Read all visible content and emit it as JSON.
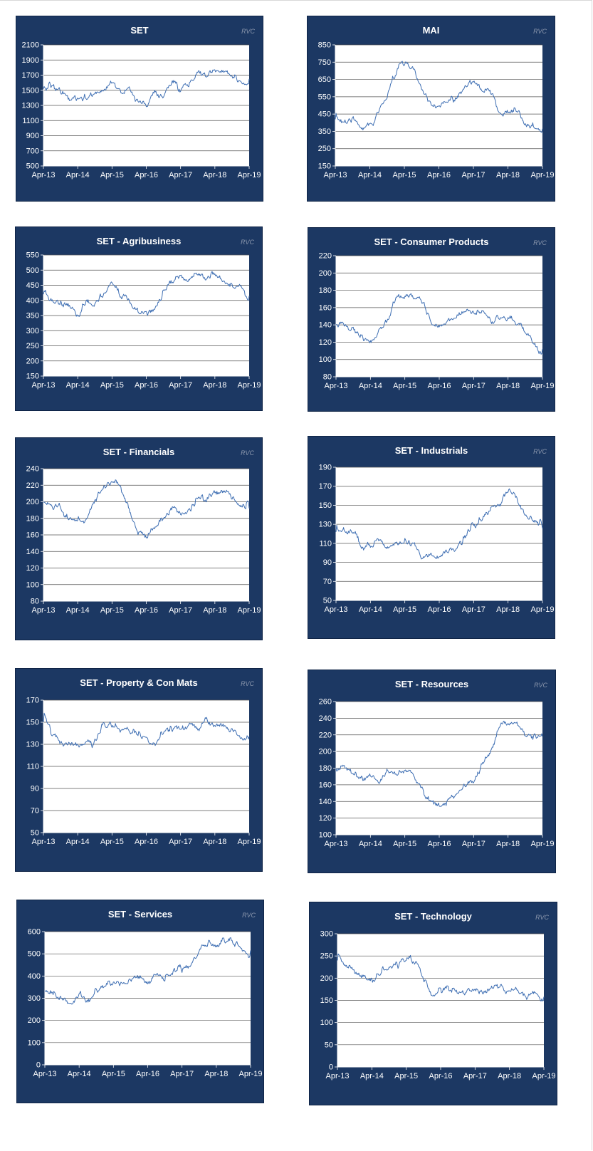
{
  "watermark": "RVC",
  "colors": {
    "panel_bg": "#1c3863",
    "plot_bg": "#ffffff",
    "line": "#3f6fb3",
    "grid": "#555555"
  },
  "x_axis_labels": [
    "Apr-13",
    "Apr-14",
    "Apr-15",
    "Apr-16",
    "Apr-17",
    "Apr-18",
    "Apr-19"
  ],
  "chart_data": [
    {
      "type": "line",
      "title": "SET",
      "ylim": [
        500,
        2100
      ],
      "yticks": [
        500,
        700,
        900,
        1100,
        1300,
        1500,
        1700,
        1900,
        2100
      ],
      "x": [
        "Apr-13",
        "Apr-14",
        "Apr-15",
        "Apr-16",
        "Apr-17",
        "Apr-18",
        "Apr-19"
      ],
      "grid": true,
      "series": [
        {
          "values": [
            1520,
            1340,
            1560,
            1370,
            1580,
            1760,
            1650
          ]
        }
      ]
    },
    {
      "type": "line",
      "title": "MAI",
      "ylim": [
        150,
        850
      ],
      "yticks": [
        150,
        250,
        350,
        450,
        550,
        650,
        750,
        850
      ],
      "x": [
        "Apr-13",
        "Apr-14",
        "Apr-15",
        "Apr-16",
        "Apr-17",
        "Apr-18",
        "Apr-19"
      ],
      "grid": true,
      "series": [
        {
          "values": [
            420,
            390,
            740,
            510,
            630,
            470,
            365
          ]
        }
      ]
    },
    {
      "type": "line",
      "title": "SET - Agribusiness",
      "ylim": [
        150,
        550
      ],
      "yticks": [
        150,
        200,
        250,
        300,
        350,
        400,
        450,
        500,
        550
      ],
      "x": [
        "Apr-13",
        "Apr-14",
        "Apr-15",
        "Apr-16",
        "Apr-17",
        "Apr-18",
        "Apr-19"
      ],
      "grid": true,
      "series": [
        {
          "values": [
            420,
            370,
            440,
            360,
            480,
            490,
            415
          ]
        }
      ]
    },
    {
      "type": "line",
      "title": "SET - Consumer Products",
      "ylim": [
        80,
        220
      ],
      "yticks": [
        80,
        100,
        120,
        140,
        160,
        180,
        200,
        220
      ],
      "x": [
        "Apr-13",
        "Apr-14",
        "Apr-15",
        "Apr-16",
        "Apr-17",
        "Apr-18",
        "Apr-19"
      ],
      "grid": true,
      "series": [
        {
          "values": [
            140,
            125,
            180,
            144,
            153,
            145,
            112
          ]
        }
      ]
    },
    {
      "type": "line",
      "title": "SET - Financials",
      "ylim": [
        80,
        240
      ],
      "yticks": [
        80,
        100,
        120,
        140,
        160,
        180,
        200,
        220,
        240
      ],
      "x": [
        "Apr-13",
        "Apr-14",
        "Apr-15",
        "Apr-16",
        "Apr-17",
        "Apr-18",
        "Apr-19"
      ],
      "grid": true,
      "series": [
        {
          "values": [
            200,
            175,
            220,
            160,
            192,
            210,
            192
          ]
        }
      ]
    },
    {
      "type": "line",
      "title": "SET - Industrials",
      "ylim": [
        50,
        190
      ],
      "yticks": [
        50,
        70,
        90,
        110,
        130,
        150,
        170,
        190
      ],
      "x": [
        "Apr-13",
        "Apr-14",
        "Apr-15",
        "Apr-16",
        "Apr-17",
        "Apr-18",
        "Apr-19"
      ],
      "grid": true,
      "series": [
        {
          "values": [
            122,
            112,
            106,
            92,
            126,
            162,
            126
          ]
        }
      ]
    },
    {
      "type": "line",
      "title": "SET - Property & Con Mats",
      "ylim": [
        50,
        170
      ],
      "yticks": [
        50,
        70,
        90,
        110,
        130,
        150,
        170
      ],
      "x": [
        "Apr-13",
        "Apr-14",
        "Apr-15",
        "Apr-16",
        "Apr-17",
        "Apr-18",
        "Apr-19"
      ],
      "grid": true,
      "series": [
        {
          "values": [
            150,
            125,
            148,
            133,
            145,
            150,
            137
          ]
        }
      ]
    },
    {
      "type": "line",
      "title": "SET - Resources",
      "ylim": [
        100,
        260
      ],
      "yticks": [
        100,
        120,
        140,
        160,
        180,
        200,
        220,
        240,
        260
      ],
      "x": [
        "Apr-13",
        "Apr-14",
        "Apr-15",
        "Apr-16",
        "Apr-17",
        "Apr-18",
        "Apr-19"
      ],
      "grid": true,
      "series": [
        {
          "values": [
            180,
            168,
            178,
            135,
            170,
            235,
            218
          ]
        }
      ]
    },
    {
      "type": "line",
      "title": "SET - Services",
      "ylim": [
        0,
        600
      ],
      "yticks": [
        0,
        100,
        200,
        300,
        400,
        500,
        600
      ],
      "x": [
        "Apr-13",
        "Apr-14",
        "Apr-15",
        "Apr-16",
        "Apr-17",
        "Apr-18",
        "Apr-19"
      ],
      "grid": true,
      "series": [
        {
          "values": [
            330,
            300,
            365,
            390,
            440,
            545,
            515
          ]
        }
      ]
    },
    {
      "type": "line",
      "title": "SET - Technology",
      "ylim": [
        0,
        300
      ],
      "yticks": [
        0,
        50,
        100,
        150,
        200,
        250,
        300
      ],
      "x": [
        "Apr-13",
        "Apr-14",
        "Apr-15",
        "Apr-16",
        "Apr-17",
        "Apr-18",
        "Apr-19"
      ],
      "grid": true,
      "series": [
        {
          "values": [
            240,
            200,
            235,
            165,
            180,
            175,
            158
          ]
        }
      ]
    }
  ]
}
